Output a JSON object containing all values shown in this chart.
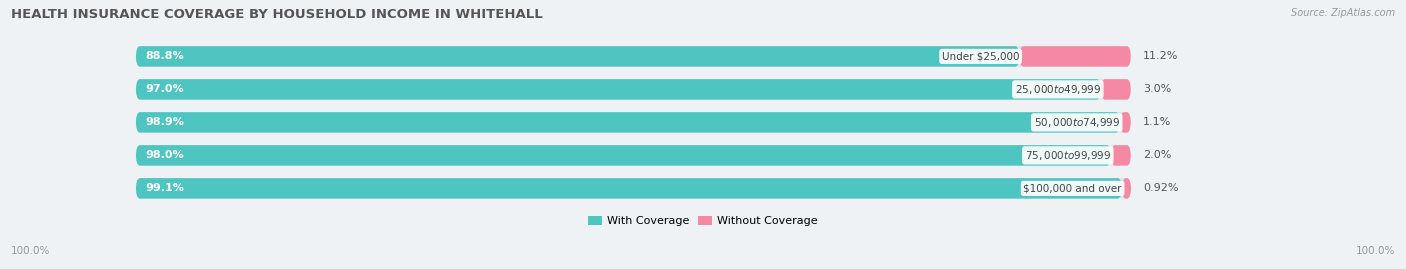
{
  "title": "HEALTH INSURANCE COVERAGE BY HOUSEHOLD INCOME IN WHITEHALL",
  "source": "Source: ZipAtlas.com",
  "categories": [
    "Under $25,000",
    "$25,000 to $49,999",
    "$50,000 to $74,999",
    "$75,000 to $99,999",
    "$100,000 and over"
  ],
  "with_coverage": [
    88.8,
    97.0,
    98.9,
    98.0,
    99.1
  ],
  "without_coverage": [
    11.2,
    3.0,
    1.1,
    2.0,
    0.92
  ],
  "with_coverage_labels": [
    "88.8%",
    "97.0%",
    "98.9%",
    "98.0%",
    "99.1%"
  ],
  "without_coverage_labels": [
    "11.2%",
    "3.0%",
    "1.1%",
    "2.0%",
    "0.92%"
  ],
  "color_with": "#4EC5C1",
  "color_without": "#F589A3",
  "legend_with": "With Coverage",
  "legend_without": "Without Coverage",
  "bar_height": 0.62,
  "background_color": "#eef2f4",
  "bar_background": "#dde4e8",
  "total_bar_width": 100,
  "left_label": "100.0%",
  "right_label": "100.0%",
  "title_fontsize": 9.5,
  "label_fontsize": 8,
  "cat_fontsize": 7.5,
  "tick_fontsize": 7.5,
  "source_fontsize": 7
}
